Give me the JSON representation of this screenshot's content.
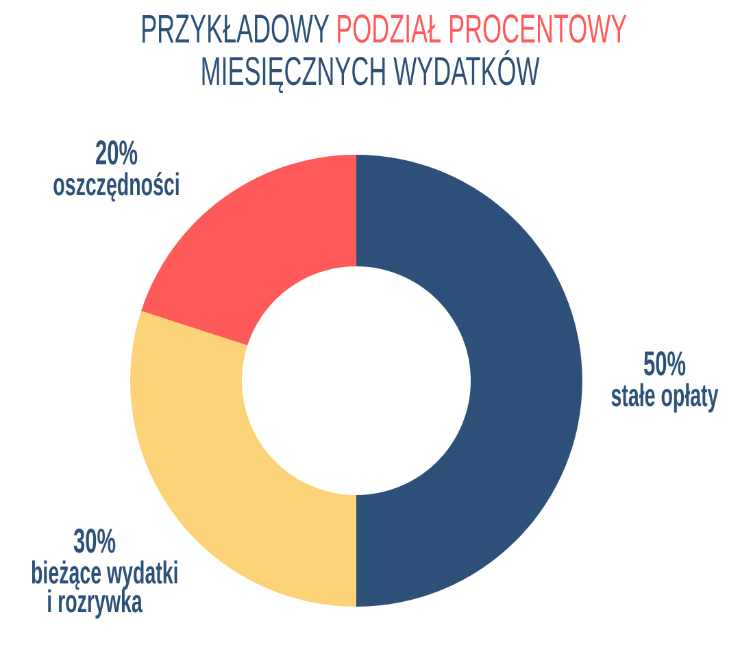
{
  "title": {
    "part1": "PRZYKŁADOWY",
    "part2": "PODZIAŁ PROCENTOWY",
    "line2": "MIESIĘCZNYCH WYDATKÓW"
  },
  "labels": {
    "savings": {
      "pct": "20%",
      "text": "oszczędności"
    },
    "fixed": {
      "pct": "50%",
      "text": "stałe opłaty"
    },
    "current": {
      "pct": "30%",
      "text1": "bieżące wydatki",
      "text2": "i rozrywka"
    }
  },
  "colors": {
    "navy": "#2c5077",
    "red": "#ff5a5a",
    "yellow": "#fdd37a"
  },
  "chart_data": {
    "type": "pie",
    "subtype": "donut",
    "title": "PRZYKŁADOWY PODZIAŁ PROCENTOWY MIESIĘCZNYCH WYDATKÓW",
    "categories": [
      "stałe opłaty",
      "bieżące wydatki i rozrywka",
      "oszczędności"
    ],
    "values": [
      50,
      30,
      20
    ],
    "unit": "%",
    "colors": [
      "#2c5077",
      "#fdd37a",
      "#ff5a5a"
    ],
    "start_angle_deg": 0,
    "direction": "clockwise",
    "legend": "none (direct labels)"
  }
}
